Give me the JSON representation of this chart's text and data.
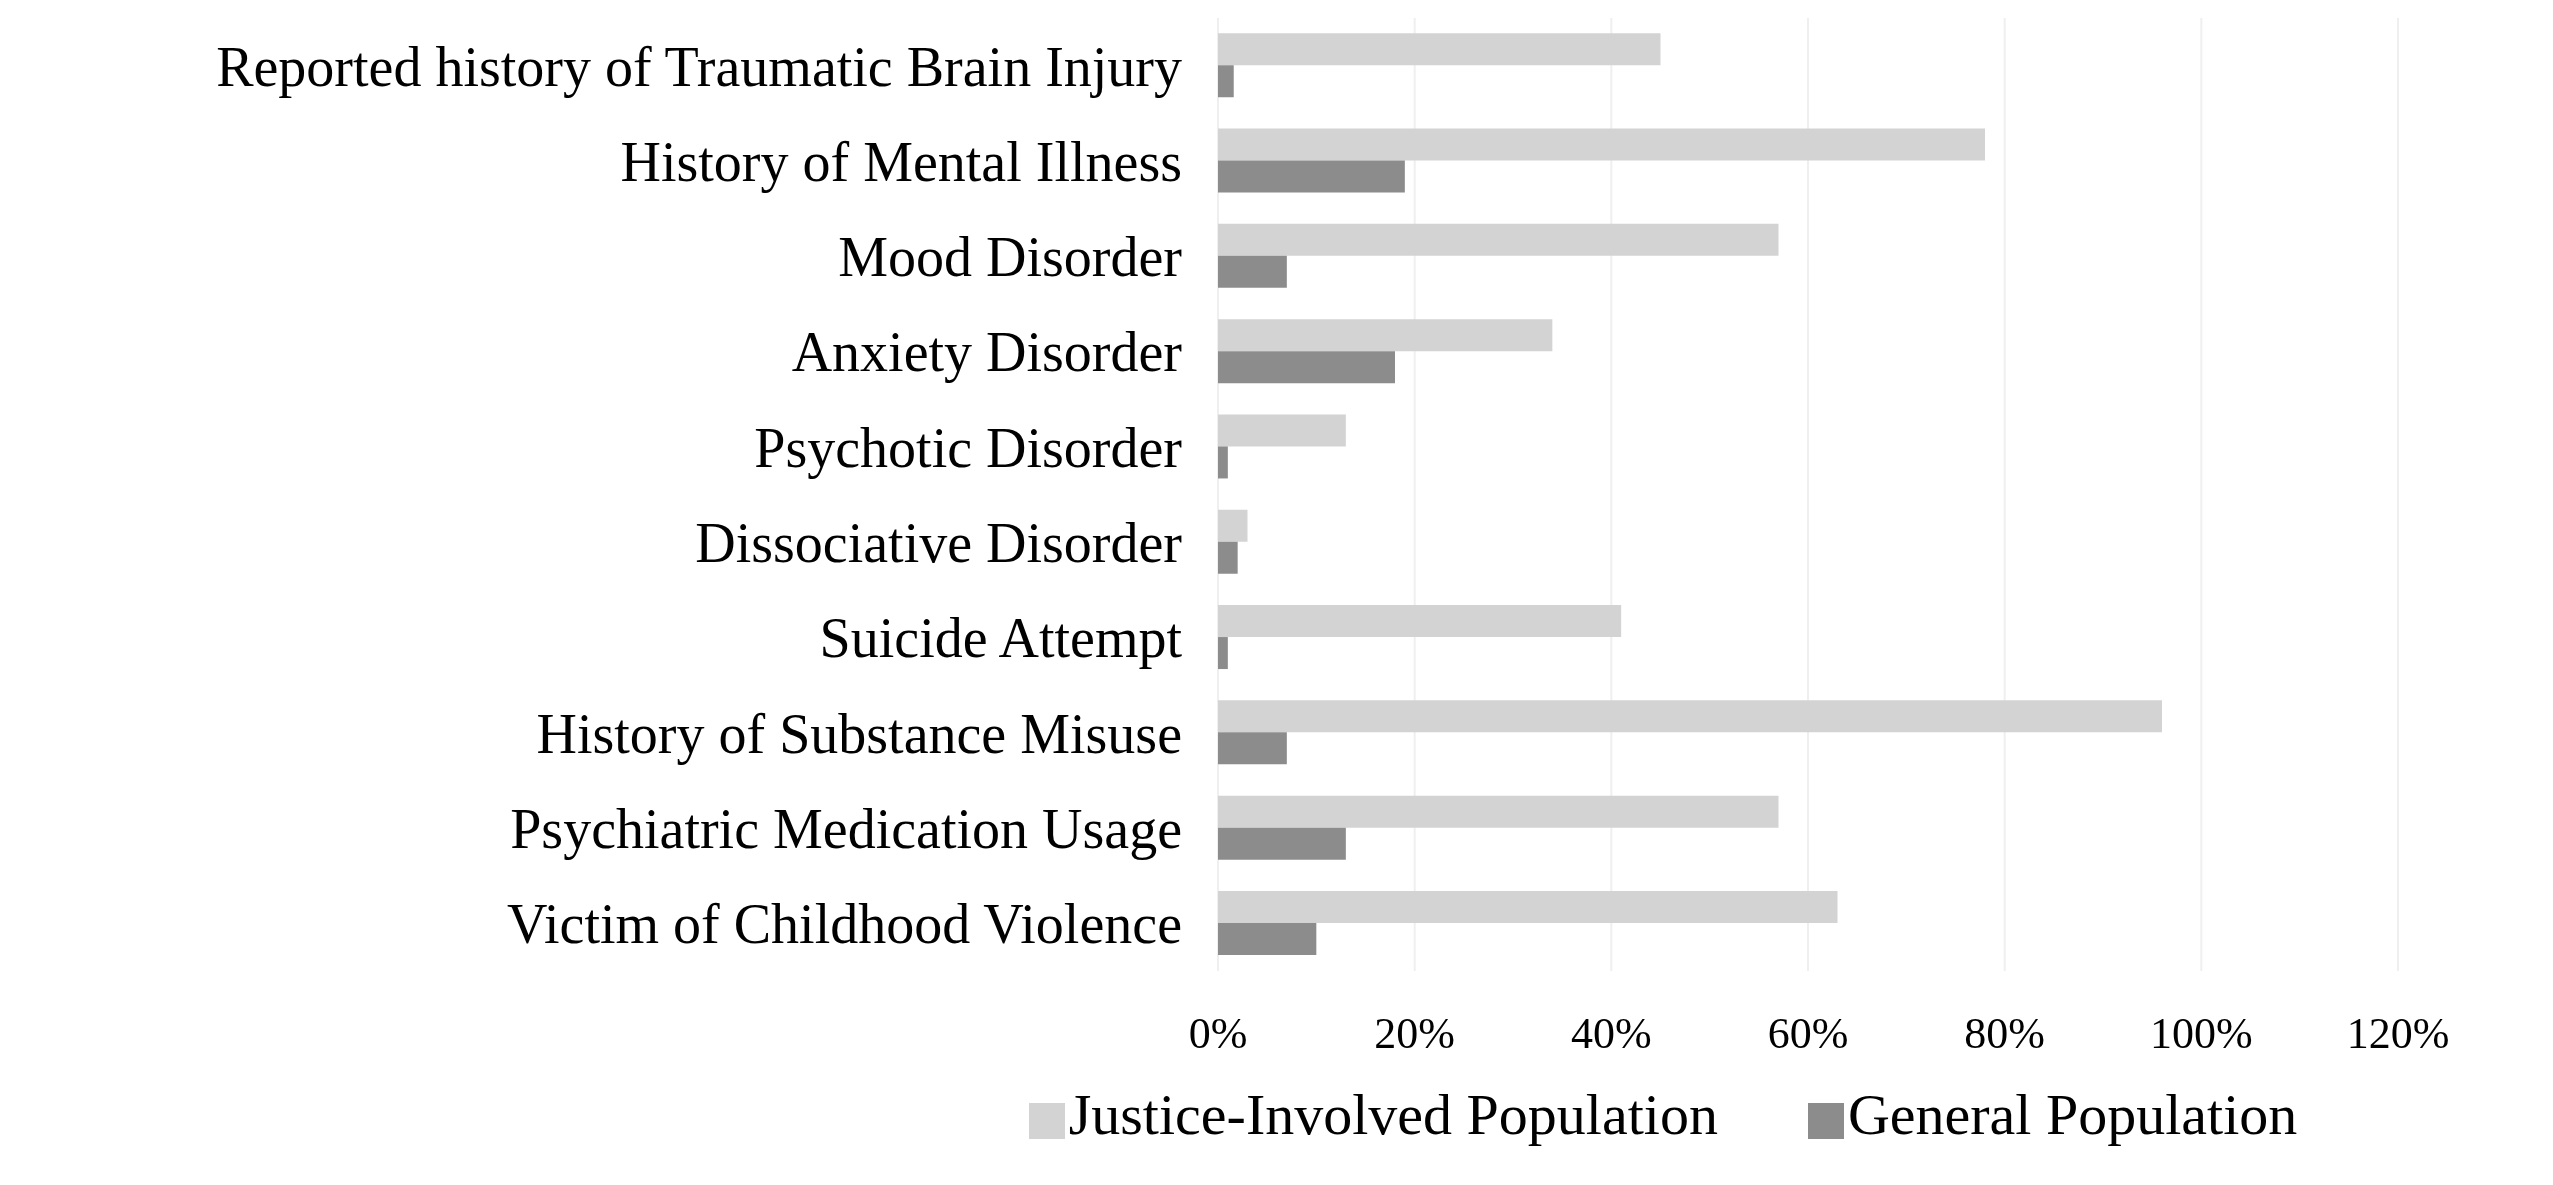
{
  "chart_data": {
    "type": "bar",
    "orientation": "horizontal",
    "categories": [
      "Reported history of Traumatic Brain Injury",
      "History of Mental Illness",
      "Mood Disorder",
      "Anxiety Disorder",
      "Psychotic Disorder",
      "Dissociative Disorder",
      "Suicide Attempt",
      "History of Substance Misuse",
      "Psychiatric Medication Usage",
      "Victim of Childhood Violence"
    ],
    "series": [
      {
        "name": "Justice-Involved Population",
        "color": "#d3d3d3",
        "values": [
          45,
          78,
          57,
          34,
          13,
          3,
          41,
          96,
          57,
          63
        ]
      },
      {
        "name": "General Population",
        "color": "#8c8c8c",
        "values": [
          1.6,
          19,
          7,
          18,
          1,
          2,
          1,
          7,
          13,
          10
        ]
      }
    ],
    "xlim": [
      0,
      120
    ],
    "xticks": [
      {
        "value": 0,
        "label": "0%"
      },
      {
        "value": 20,
        "label": "20%"
      },
      {
        "value": 40,
        "label": "40%"
      },
      {
        "value": 60,
        "label": "60%"
      },
      {
        "value": 80,
        "label": "80%"
      },
      {
        "value": 100,
        "label": "100%"
      },
      {
        "value": 120,
        "label": "120%"
      }
    ],
    "grid": "x",
    "legend": "bottom"
  }
}
